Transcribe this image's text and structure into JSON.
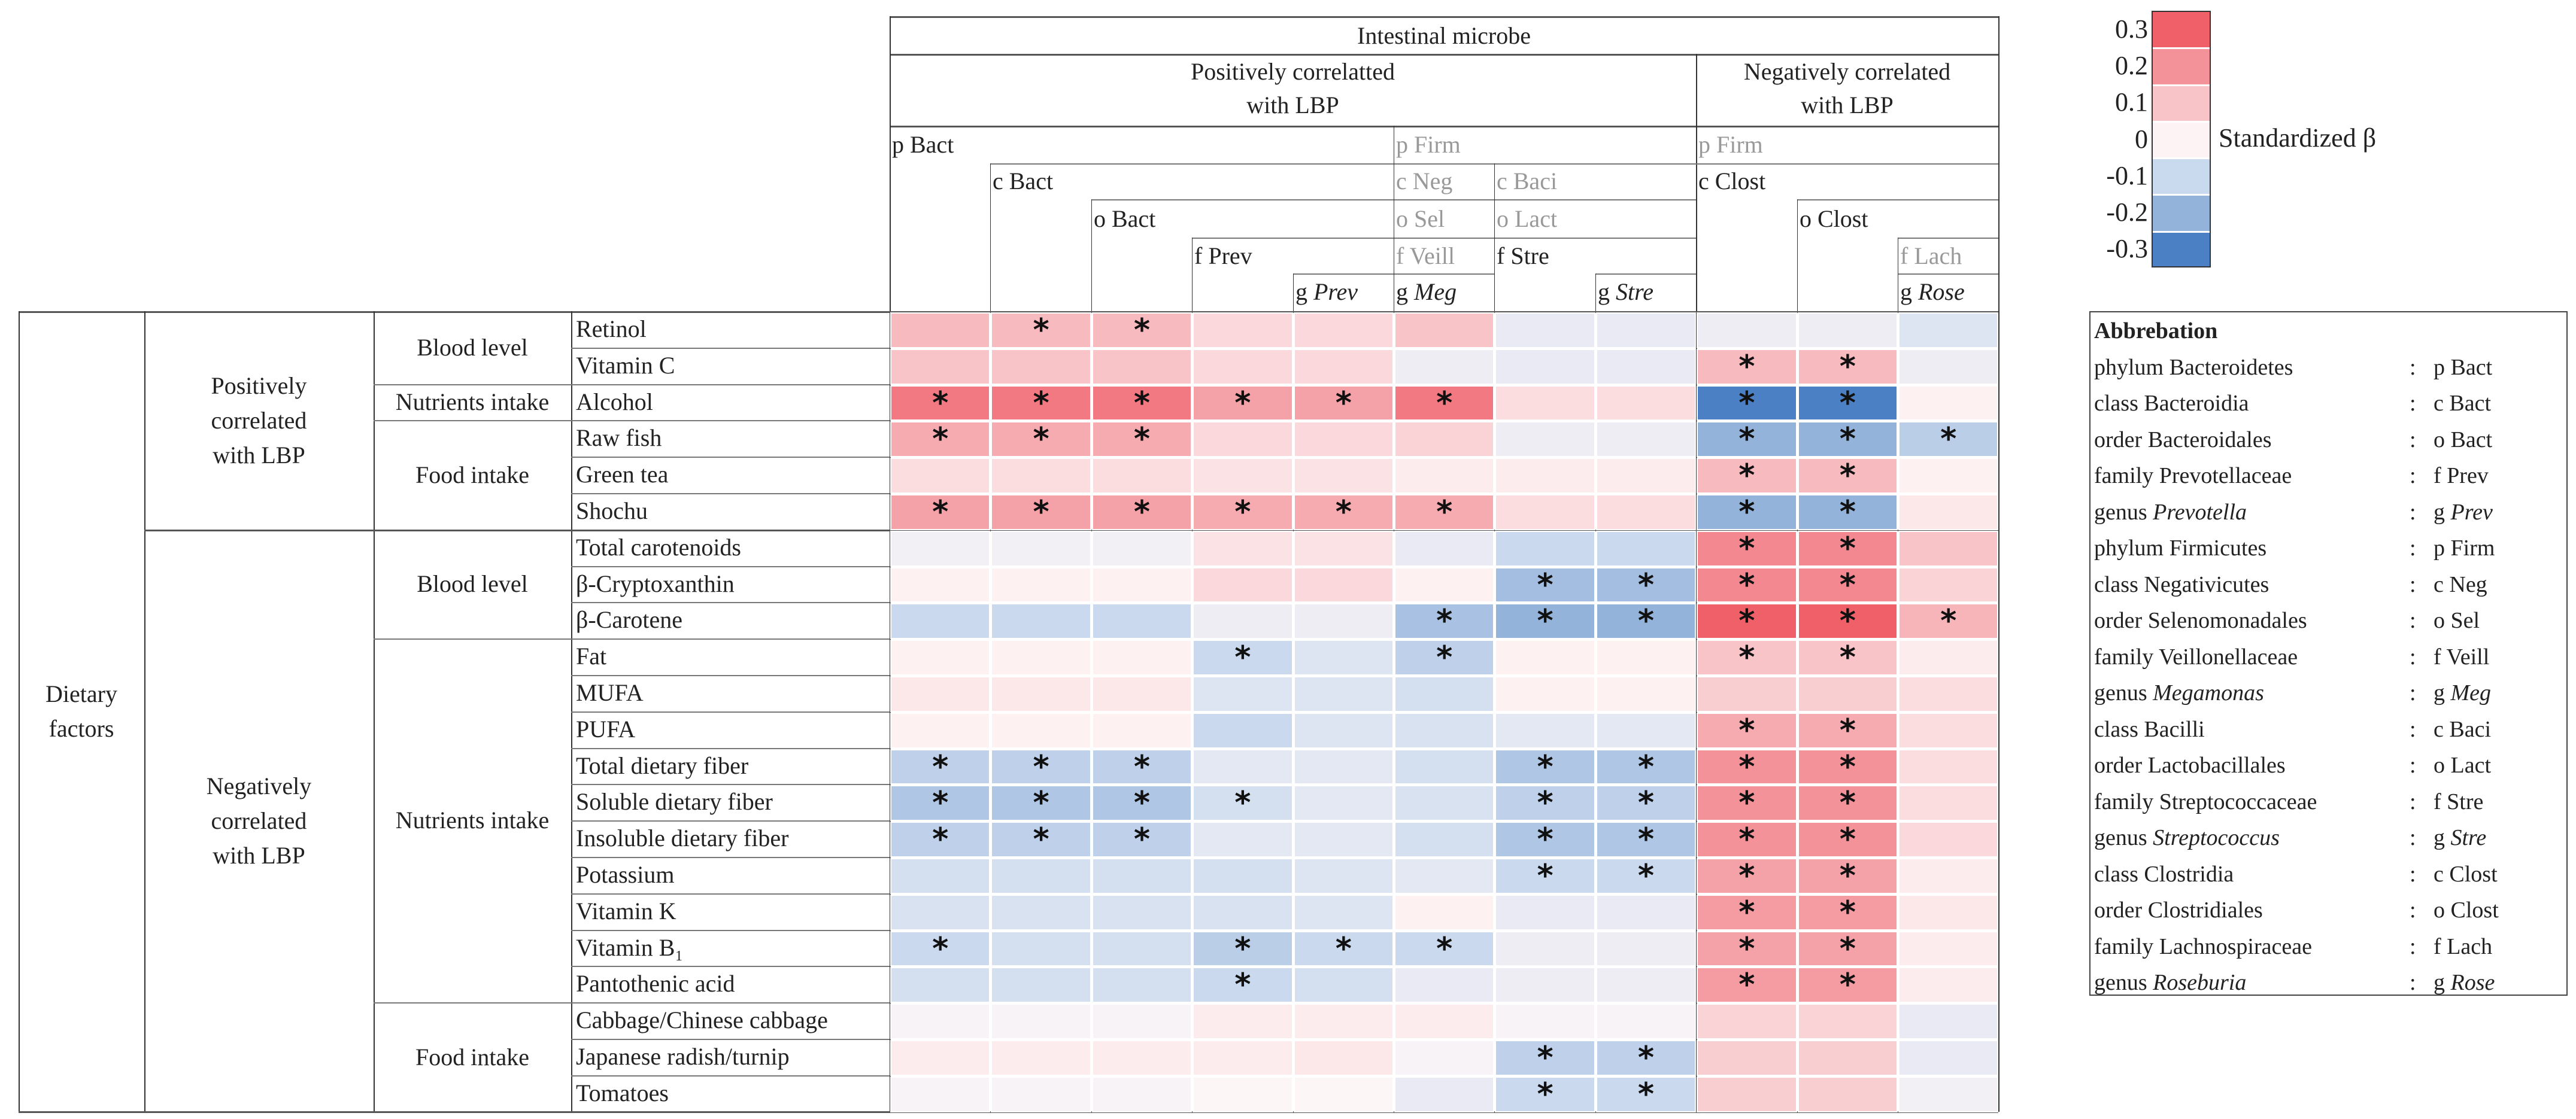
{
  "header": {
    "title": "Intestinal microbe",
    "positive_group": [
      "Positively correlatted",
      "with LBP"
    ],
    "negative_group": [
      "Negatively correlated",
      "with LBP"
    ],
    "taxa": {
      "p_bact": "p Bact",
      "c_bact": "c Bact",
      "o_bact": "o Bact",
      "f_prev": "f Prev",
      "g_prev": {
        "prefix": "g",
        "name": "Prev"
      },
      "p_firm_pos": "p Firm",
      "c_neg": "c Neg",
      "o_sel": "o Sel",
      "f_veill": "f Veill",
      "g_meg": {
        "prefix": "g",
        "name": "Meg"
      },
      "c_baci": "c Baci",
      "o_lact": "o Lact",
      "f_stre": "f Stre",
      "g_stre": {
        "prefix": "g",
        "name": "Stre"
      },
      "p_firm_neg": "p Firm",
      "c_clost": "c Clost",
      "o_clost": "o Clost",
      "f_lach": "f Lach",
      "g_rose": {
        "prefix": "g",
        "name": "Rose"
      }
    }
  },
  "left": {
    "dietary": [
      "Dietary",
      "factors"
    ],
    "positive": [
      "Positively",
      "correlated",
      "with LBP"
    ],
    "negative": [
      "Negatively",
      "correlated",
      "with LBP"
    ],
    "groups": {
      "blood_level_1": "Blood level",
      "nutrients_1": "Nutrients intake",
      "food_1": "Food intake",
      "blood_level_2": "Blood level",
      "nutrients_2": "Nutrients intake",
      "food_2": "Food intake"
    }
  },
  "colorbar": {
    "title": "Standardized β",
    "ticks": [
      "0.3",
      "0.2",
      "0.1",
      "0",
      "-0.1",
      "-0.2",
      "-0.3"
    ],
    "colors": [
      "#f06068",
      "#f4929a",
      "#f8c4c8",
      "#fdf3f4",
      "#c9d9ee",
      "#93b3db",
      "#4c80c4"
    ]
  },
  "abbreviation": {
    "title": "Abbrebation",
    "separator": ":",
    "items": [
      {
        "rank": "phylum",
        "name": "Bacteroidetes",
        "italic": false,
        "abbr_prefix": "p",
        "abbr": "Bact"
      },
      {
        "rank": "class",
        "name": "Bacteroidia",
        "italic": false,
        "abbr_prefix": "c",
        "abbr": "Bact"
      },
      {
        "rank": "order",
        "name": "Bacteroidales",
        "italic": false,
        "abbr_prefix": "o",
        "abbr": "Bact"
      },
      {
        "rank": "family",
        "name": "Prevotellaceae",
        "italic": false,
        "abbr_prefix": "f",
        "abbr": "Prev"
      },
      {
        "rank": "genus",
        "name": "Prevotella",
        "italic": true,
        "abbr_prefix": "g",
        "abbr": "Prev"
      },
      {
        "rank": "phylum",
        "name": "Firmicutes",
        "italic": false,
        "abbr_prefix": "p",
        "abbr": "Firm"
      },
      {
        "rank": "class",
        "name": "Negativicutes",
        "italic": false,
        "abbr_prefix": "c",
        "abbr": "Neg"
      },
      {
        "rank": "order",
        "name": "Selenomonadales",
        "italic": false,
        "abbr_prefix": "o",
        "abbr": "Sel"
      },
      {
        "rank": "family",
        "name": "Veillonellaceae",
        "italic": false,
        "abbr_prefix": "f",
        "abbr": "Veill"
      },
      {
        "rank": "genus",
        "name": "Megamonas",
        "italic": true,
        "abbr_prefix": "g",
        "abbr": "Meg"
      },
      {
        "rank": "class",
        "name": "Bacilli",
        "italic": false,
        "abbr_prefix": "c",
        "abbr": "Baci"
      },
      {
        "rank": "order",
        "name": "Lactobacillales",
        "italic": false,
        "abbr_prefix": "o",
        "abbr": "Lact"
      },
      {
        "rank": "family",
        "name": "Streptococcaceae",
        "italic": false,
        "abbr_prefix": "f",
        "abbr": "Stre"
      },
      {
        "rank": "genus",
        "name": "Streptococcus",
        "italic": true,
        "abbr_prefix": "g",
        "abbr": "Stre"
      },
      {
        "rank": "class",
        "name": "Clostridia",
        "italic": false,
        "abbr_prefix": "c",
        "abbr": "Clost"
      },
      {
        "rank": "order",
        "name": "Clostridiales",
        "italic": false,
        "abbr_prefix": "o",
        "abbr": "Clost"
      },
      {
        "rank": "family",
        "name": "Lachnospiraceae",
        "italic": false,
        "abbr_prefix": "f",
        "abbr": "Lach"
      },
      {
        "rank": "genus",
        "name": "Roseburia",
        "italic": true,
        "abbr_prefix": "g",
        "abbr": "Rose"
      }
    ]
  },
  "chart_data": {
    "type": "heatmap",
    "title": "Intestinal microbe",
    "colorbar_label": "Standardized β",
    "range": [
      -0.3,
      0.3
    ],
    "sig_marker": "*",
    "columns": [
      "p Bact",
      "c Bact",
      "o Bact",
      "f Prev",
      "g Prev",
      "g Meg",
      "f Stre",
      "g Stre",
      "c Clost",
      "o Clost",
      "g Rose"
    ],
    "rows": [
      "Retinol",
      "Vitamin C",
      "Alcohol",
      "Raw fish",
      "Green tea",
      "Shochu",
      "Total carotenoids",
      "β-Cryptoxanthin",
      "β-Carotene",
      "Fat",
      "MUFA",
      "PUFA",
      "Total dietary fiber",
      "Soluble dietary fiber",
      "Insoluble dietary fiber",
      "Potassium",
      "Vitamin K",
      "Vitamin B₁",
      "Pantothenic acid",
      "Cabbage/Chinese cabbage",
      "Japanese radish/turnip",
      "Tomatoes"
    ],
    "values": [
      [
        0.12,
        0.12,
        0.12,
        0.06,
        0.06,
        0.1,
        -0.04,
        -0.04,
        -0.03,
        -0.03,
        -0.06
      ],
      [
        0.1,
        0.1,
        0.1,
        0.06,
        0.06,
        -0.03,
        -0.04,
        -0.04,
        0.12,
        0.12,
        -0.03
      ],
      [
        0.25,
        0.25,
        0.25,
        0.17,
        0.17,
        0.25,
        0.05,
        0.05,
        -0.3,
        -0.3,
        0.01
      ],
      [
        0.15,
        0.15,
        0.15,
        0.06,
        0.06,
        0.07,
        -0.03,
        -0.03,
        -0.2,
        -0.2,
        -0.13
      ],
      [
        0.05,
        0.05,
        0.05,
        0.04,
        0.04,
        0.02,
        0.02,
        0.02,
        0.12,
        0.12,
        0.01
      ],
      [
        0.17,
        0.17,
        0.17,
        0.15,
        0.15,
        0.15,
        0.05,
        0.05,
        -0.2,
        -0.2,
        0.03
      ],
      [
        -0.02,
        -0.02,
        -0.02,
        0.04,
        0.04,
        -0.04,
        -0.1,
        -0.1,
        0.22,
        0.22,
        0.1
      ],
      [
        0.01,
        0.01,
        0.01,
        0.06,
        0.06,
        0.01,
        -0.17,
        -0.17,
        0.22,
        0.22,
        0.07
      ],
      [
        -0.1,
        -0.1,
        -0.1,
        -0.03,
        -0.03,
        -0.16,
        -0.2,
        -0.2,
        0.3,
        0.3,
        0.13
      ],
      [
        0.01,
        0.01,
        0.01,
        -0.1,
        -0.06,
        -0.12,
        0.01,
        0.01,
        0.1,
        0.1,
        0.02
      ],
      [
        0.03,
        0.03,
        0.03,
        -0.06,
        -0.06,
        -0.08,
        0.01,
        0.01,
        0.08,
        0.08,
        0.05
      ],
      [
        0.01,
        0.01,
        0.01,
        -0.1,
        -0.06,
        -0.07,
        -0.05,
        -0.05,
        0.15,
        0.15,
        0.05
      ],
      [
        -0.12,
        -0.12,
        -0.12,
        -0.05,
        -0.05,
        -0.08,
        -0.15,
        -0.15,
        0.2,
        0.2,
        0.05
      ],
      [
        -0.15,
        -0.15,
        -0.15,
        -0.08,
        -0.05,
        -0.07,
        -0.12,
        -0.12,
        0.2,
        0.2,
        0.05
      ],
      [
        -0.12,
        -0.12,
        -0.12,
        -0.05,
        -0.05,
        -0.08,
        -0.15,
        -0.15,
        0.2,
        0.2,
        0.06
      ],
      [
        -0.08,
        -0.08,
        -0.08,
        -0.08,
        -0.06,
        -0.05,
        -0.1,
        -0.1,
        0.17,
        0.17,
        0.02
      ],
      [
        -0.07,
        -0.07,
        -0.07,
        -0.07,
        -0.06,
        0.01,
        -0.04,
        -0.04,
        0.18,
        0.18,
        0.03
      ],
      [
        -0.1,
        -0.08,
        -0.08,
        -0.13,
        -0.1,
        -0.1,
        -0.03,
        -0.03,
        0.17,
        0.17,
        0.02
      ],
      [
        -0.08,
        -0.08,
        -0.08,
        -0.1,
        -0.08,
        -0.04,
        -0.03,
        -0.03,
        0.18,
        0.18,
        0.02
      ],
      [
        -0.01,
        -0.01,
        -0.01,
        0.02,
        0.02,
        0.02,
        -0.01,
        -0.01,
        0.07,
        0.07,
        -0.04
      ],
      [
        0.02,
        0.02,
        0.02,
        0.02,
        0.03,
        -0.01,
        -0.12,
        -0.12,
        0.08,
        0.08,
        -0.04
      ],
      [
        -0.01,
        -0.01,
        -0.01,
        0.0,
        0.0,
        -0.04,
        -0.1,
        -0.1,
        0.08,
        0.08,
        -0.02
      ]
    ],
    "significant": [
      [
        0,
        1,
        1,
        0,
        0,
        0,
        0,
        0,
        0,
        0,
        0
      ],
      [
        0,
        0,
        0,
        0,
        0,
        0,
        0,
        0,
        1,
        1,
        0
      ],
      [
        1,
        1,
        1,
        1,
        1,
        1,
        0,
        0,
        1,
        1,
        0
      ],
      [
        1,
        1,
        1,
        0,
        0,
        0,
        0,
        0,
        1,
        1,
        1
      ],
      [
        0,
        0,
        0,
        0,
        0,
        0,
        0,
        0,
        1,
        1,
        0
      ],
      [
        1,
        1,
        1,
        1,
        1,
        1,
        0,
        0,
        1,
        1,
        0
      ],
      [
        0,
        0,
        0,
        0,
        0,
        0,
        0,
        0,
        1,
        1,
        0
      ],
      [
        0,
        0,
        0,
        0,
        0,
        0,
        1,
        1,
        1,
        1,
        0
      ],
      [
        0,
        0,
        0,
        0,
        0,
        1,
        1,
        1,
        1,
        1,
        1
      ],
      [
        0,
        0,
        0,
        1,
        0,
        1,
        0,
        0,
        1,
        1,
        0
      ],
      [
        0,
        0,
        0,
        0,
        0,
        0,
        0,
        0,
        0,
        0,
        0
      ],
      [
        0,
        0,
        0,
        0,
        0,
        0,
        0,
        0,
        1,
        1,
        0
      ],
      [
        1,
        1,
        1,
        0,
        0,
        0,
        1,
        1,
        1,
        1,
        0
      ],
      [
        1,
        1,
        1,
        1,
        0,
        0,
        1,
        1,
        1,
        1,
        0
      ],
      [
        1,
        1,
        1,
        0,
        0,
        0,
        1,
        1,
        1,
        1,
        0
      ],
      [
        0,
        0,
        0,
        0,
        0,
        0,
        1,
        1,
        1,
        1,
        0
      ],
      [
        0,
        0,
        0,
        0,
        0,
        0,
        0,
        0,
        1,
        1,
        0
      ],
      [
        1,
        0,
        0,
        1,
        1,
        1,
        0,
        0,
        1,
        1,
        0
      ],
      [
        0,
        0,
        0,
        1,
        0,
        0,
        0,
        0,
        1,
        1,
        0
      ],
      [
        0,
        0,
        0,
        0,
        0,
        0,
        0,
        0,
        0,
        0,
        0
      ],
      [
        0,
        0,
        0,
        0,
        0,
        0,
        1,
        1,
        0,
        0,
        0
      ],
      [
        0,
        0,
        0,
        0,
        0,
        0,
        1,
        1,
        0,
        0,
        0
      ]
    ]
  }
}
